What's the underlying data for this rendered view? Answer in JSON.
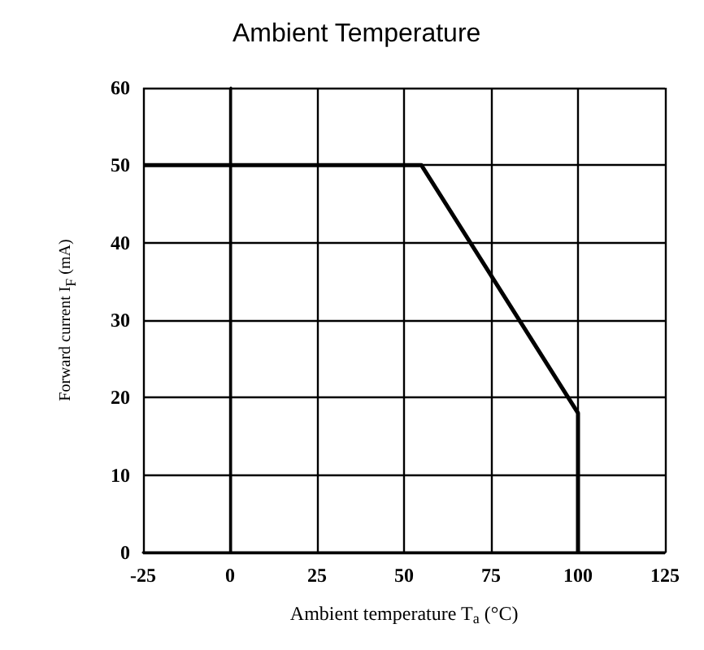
{
  "chart_data": {
    "type": "line",
    "title": "Ambient Temperature",
    "xlabel": "Ambient temperature T$_{a}$ (°C)",
    "ylabel": "Forward current I$_{F}$ (mA)",
    "x": [
      -25,
      55,
      100,
      100
    ],
    "series": [
      {
        "color": "#000000",
        "values": [
          50,
          50,
          18,
          0
        ]
      }
    ],
    "xlim": [
      -25,
      125
    ],
    "xticks": [
      -25,
      0,
      25,
      50,
      75,
      100,
      125
    ],
    "ylim": [
      0,
      60
    ],
    "yticks": [
      0,
      10,
      20,
      30,
      40,
      50,
      60
    ],
    "grid": true,
    "marker": "none",
    "line_style": "solid"
  }
}
